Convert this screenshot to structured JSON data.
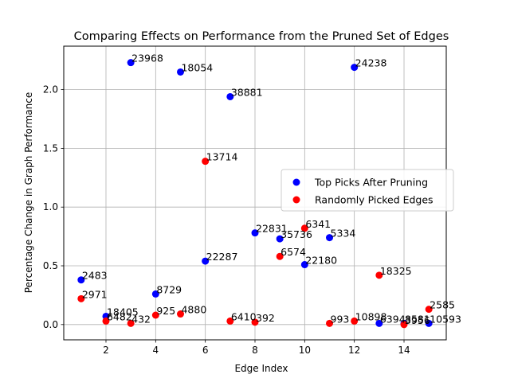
{
  "chart_data": {
    "type": "scatter",
    "title": "Comparing Effects on Performance from the Pruned Set of Edges",
    "xlabel": "Edge Index",
    "ylabel": "Percentage Change in Graph Performance",
    "xlim": [
      0.3,
      15.7
    ],
    "ylim": [
      -0.13,
      2.37
    ],
    "xticks": [
      2,
      4,
      6,
      8,
      10,
      12,
      14
    ],
    "yticks": [
      0.0,
      0.5,
      1.0,
      1.5,
      2.0
    ],
    "xtick_labels": [
      "2",
      "4",
      "6",
      "8",
      "10",
      "12",
      "14"
    ],
    "ytick_labels": [
      "0.0",
      "0.5",
      "1.0",
      "1.5",
      "2.0"
    ],
    "grid": true,
    "legend_position": "center-right",
    "series": [
      {
        "name": "Top Picks After Pruning",
        "color": "#0000ff",
        "points": [
          {
            "x": 1,
            "y": 0.38,
            "label": "2483"
          },
          {
            "x": 2,
            "y": 0.07,
            "label": "18405"
          },
          {
            "x": 3,
            "y": 2.23,
            "label": "23968"
          },
          {
            "x": 4,
            "y": 0.26,
            "label": "8729"
          },
          {
            "x": 5,
            "y": 2.15,
            "label": "18054"
          },
          {
            "x": 6,
            "y": 0.54,
            "label": "22287"
          },
          {
            "x": 7,
            "y": 1.94,
            "label": "38881"
          },
          {
            "x": 8,
            "y": 0.78,
            "label": "22831"
          },
          {
            "x": 9,
            "y": 0.73,
            "label": "35736"
          },
          {
            "x": 10,
            "y": 0.51,
            "label": "22180"
          },
          {
            "x": 11,
            "y": 0.74,
            "label": "5334"
          },
          {
            "x": 12,
            "y": 2.19,
            "label": "24238"
          },
          {
            "x": 13,
            "y": 0.01,
            "label": "6394"
          },
          {
            "x": 14,
            "y": 0.01,
            "label": "8581"
          },
          {
            "x": 15,
            "y": 0.01,
            "label": "10593"
          }
        ]
      },
      {
        "name": "Randomly Picked Edges",
        "color": "#ff0000",
        "points": [
          {
            "x": 1,
            "y": 0.22,
            "label": "2971"
          },
          {
            "x": 2,
            "y": 0.03,
            "label": "6482"
          },
          {
            "x": 3,
            "y": 0.01,
            "label": "432"
          },
          {
            "x": 4,
            "y": 0.08,
            "label": "925"
          },
          {
            "x": 5,
            "y": 0.09,
            "label": "4880"
          },
          {
            "x": 6,
            "y": 1.39,
            "label": "13714"
          },
          {
            "x": 7,
            "y": 0.03,
            "label": "6410"
          },
          {
            "x": 8,
            "y": 0.02,
            "label": "392"
          },
          {
            "x": 9,
            "y": 0.58,
            "label": "6574"
          },
          {
            "x": 10,
            "y": 0.82,
            "label": "6341"
          },
          {
            "x": 11,
            "y": 0.01,
            "label": "993"
          },
          {
            "x": 12,
            "y": 0.03,
            "label": "10898"
          },
          {
            "x": 13,
            "y": 0.42,
            "label": "18325"
          },
          {
            "x": 14,
            "y": 0.0,
            "label": "3956"
          },
          {
            "x": 15,
            "y": 0.13,
            "label": "2585"
          }
        ]
      }
    ]
  }
}
